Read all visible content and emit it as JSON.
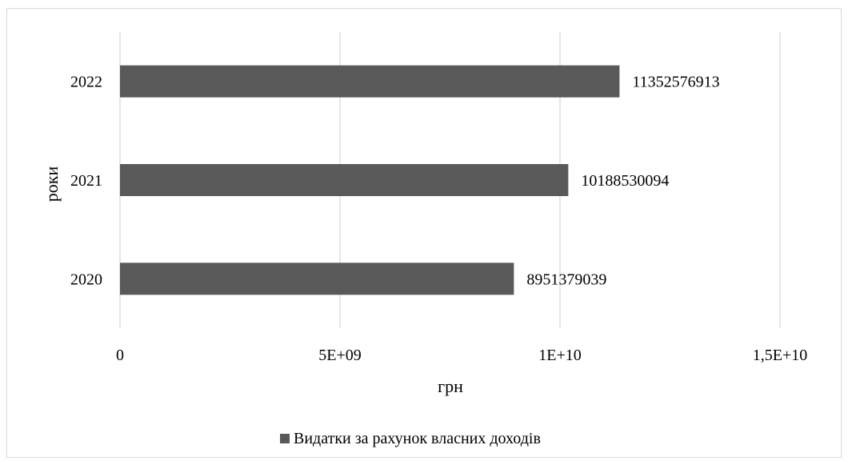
{
  "chart_data": {
    "type": "bar",
    "orientation": "horizontal",
    "categories": [
      "2022",
      "2021",
      "2020"
    ],
    "series": [
      {
        "name": "Видатки за рахунок власних доходів",
        "values": [
          11352576913,
          10188530094,
          8951379039
        ],
        "labels": [
          "11352576913",
          "10188530094",
          "8951379039"
        ],
        "color": "#595959"
      }
    ],
    "title": "",
    "xlabel": "грн",
    "ylabel": "роки",
    "xlim": [
      0,
      15000000000
    ],
    "x_ticks": [
      0,
      5000000000,
      10000000000,
      15000000000
    ],
    "x_tick_labels": [
      "0",
      "5E+09",
      "1E+10",
      "1,5E+10"
    ],
    "grid": "vertical",
    "legend_position": "bottom"
  }
}
